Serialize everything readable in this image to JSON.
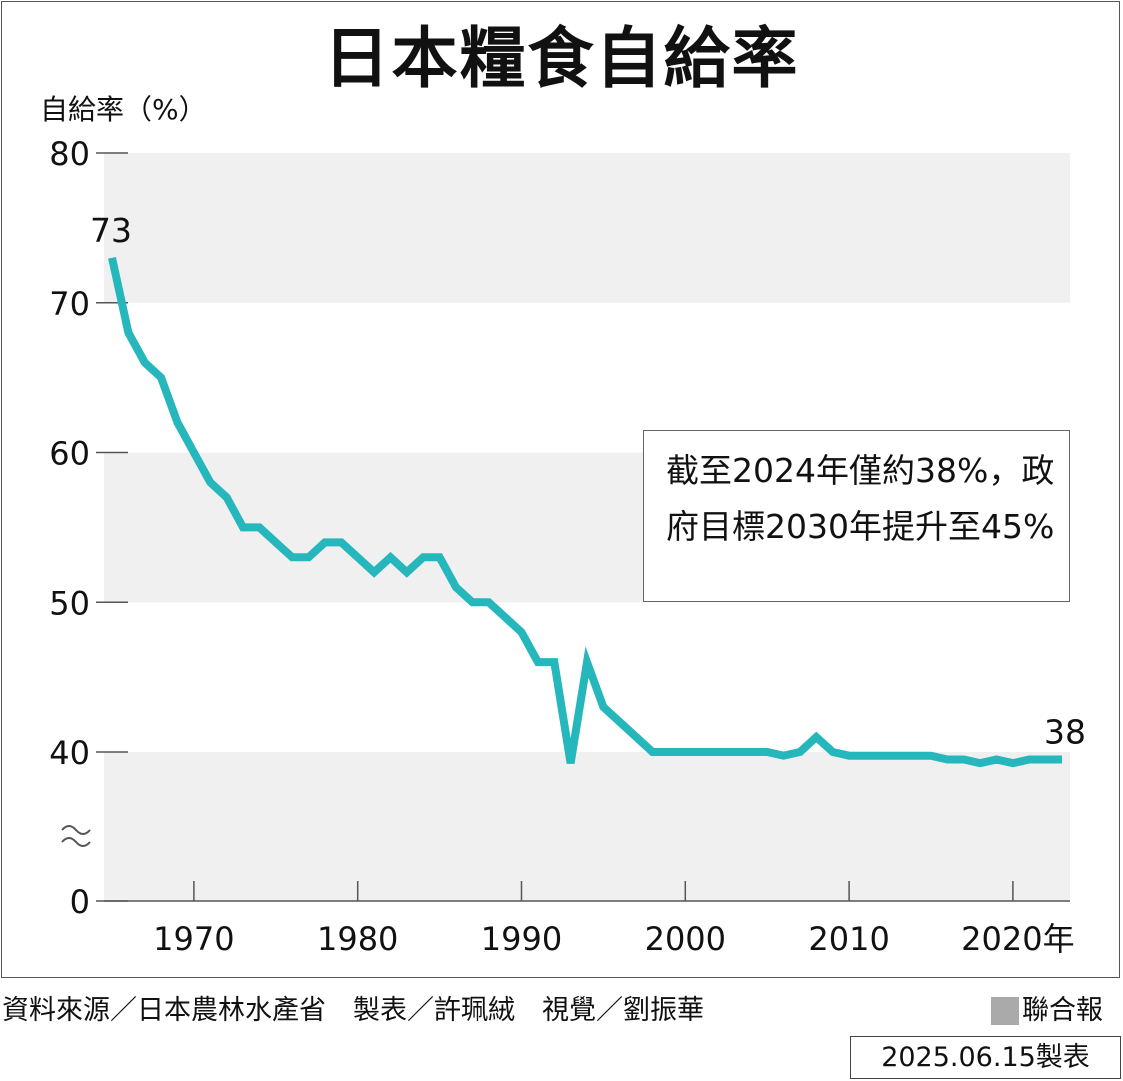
{
  "chart_data": {
    "type": "line",
    "title": "日本糧食自給率",
    "ylabel": "自給率（%）",
    "y_ticks": [
      "80",
      "70",
      "60",
      "50",
      "40",
      "0"
    ],
    "x_ticks": [
      "1970",
      "1980",
      "1990",
      "2000",
      "2010",
      "2020年"
    ],
    "axis_break": true,
    "ylim": [
      0,
      80
    ],
    "series": [
      {
        "color": "#26b7bc",
        "x": [
          1965,
          1966,
          1967,
          1968,
          1969,
          1970,
          1971,
          1972,
          1973,
          1974,
          1975,
          1976,
          1977,
          1978,
          1979,
          1980,
          1981,
          1982,
          1983,
          1984,
          1985,
          1986,
          1987,
          1988,
          1989,
          1990,
          1991,
          1992,
          1993,
          1994,
          1995,
          1996,
          1997,
          1998,
          1999,
          2000,
          2001,
          2002,
          2003,
          2004,
          2005,
          2006,
          2007,
          2008,
          2009,
          2010,
          2011,
          2012,
          2013,
          2014,
          2015,
          2016,
          2017,
          2018,
          2019,
          2020,
          2021,
          2022,
          2023
        ],
        "values": [
          73,
          68,
          66,
          65,
          62,
          60,
          58,
          57,
          55,
          55,
          54,
          53,
          53,
          54,
          54,
          53,
          52,
          53,
          52,
          53,
          53,
          51,
          50,
          50,
          49,
          48,
          46,
          46,
          37,
          46,
          43,
          42,
          41,
          40,
          40,
          40,
          40,
          40,
          40,
          40,
          40,
          39,
          40,
          41,
          40,
          39,
          39,
          39,
          39,
          39,
          39,
          38,
          38,
          37,
          38,
          37,
          38,
          38,
          38
        ]
      }
    ],
    "data_labels": [
      {
        "x": 1965,
        "value": 73,
        "text": "73"
      },
      {
        "x": 2023,
        "value": 38,
        "text": "38"
      }
    ],
    "annotation": "截至2024年僅約38%，政府目標2030年提升至45%",
    "bands": [
      [
        70,
        80
      ],
      [
        50,
        60
      ],
      [
        0,
        40
      ]
    ]
  },
  "footer": {
    "source": "資料來源／日本農林水產省　製表／許珮絨　視覺／劉振華",
    "brand": "聯合報",
    "date": "2025.06.15製表"
  },
  "colors": {
    "line": "#26b7bc",
    "band": "#f0f0f0",
    "axis": "#555555",
    "brand_square": "#aaaaaa"
  }
}
